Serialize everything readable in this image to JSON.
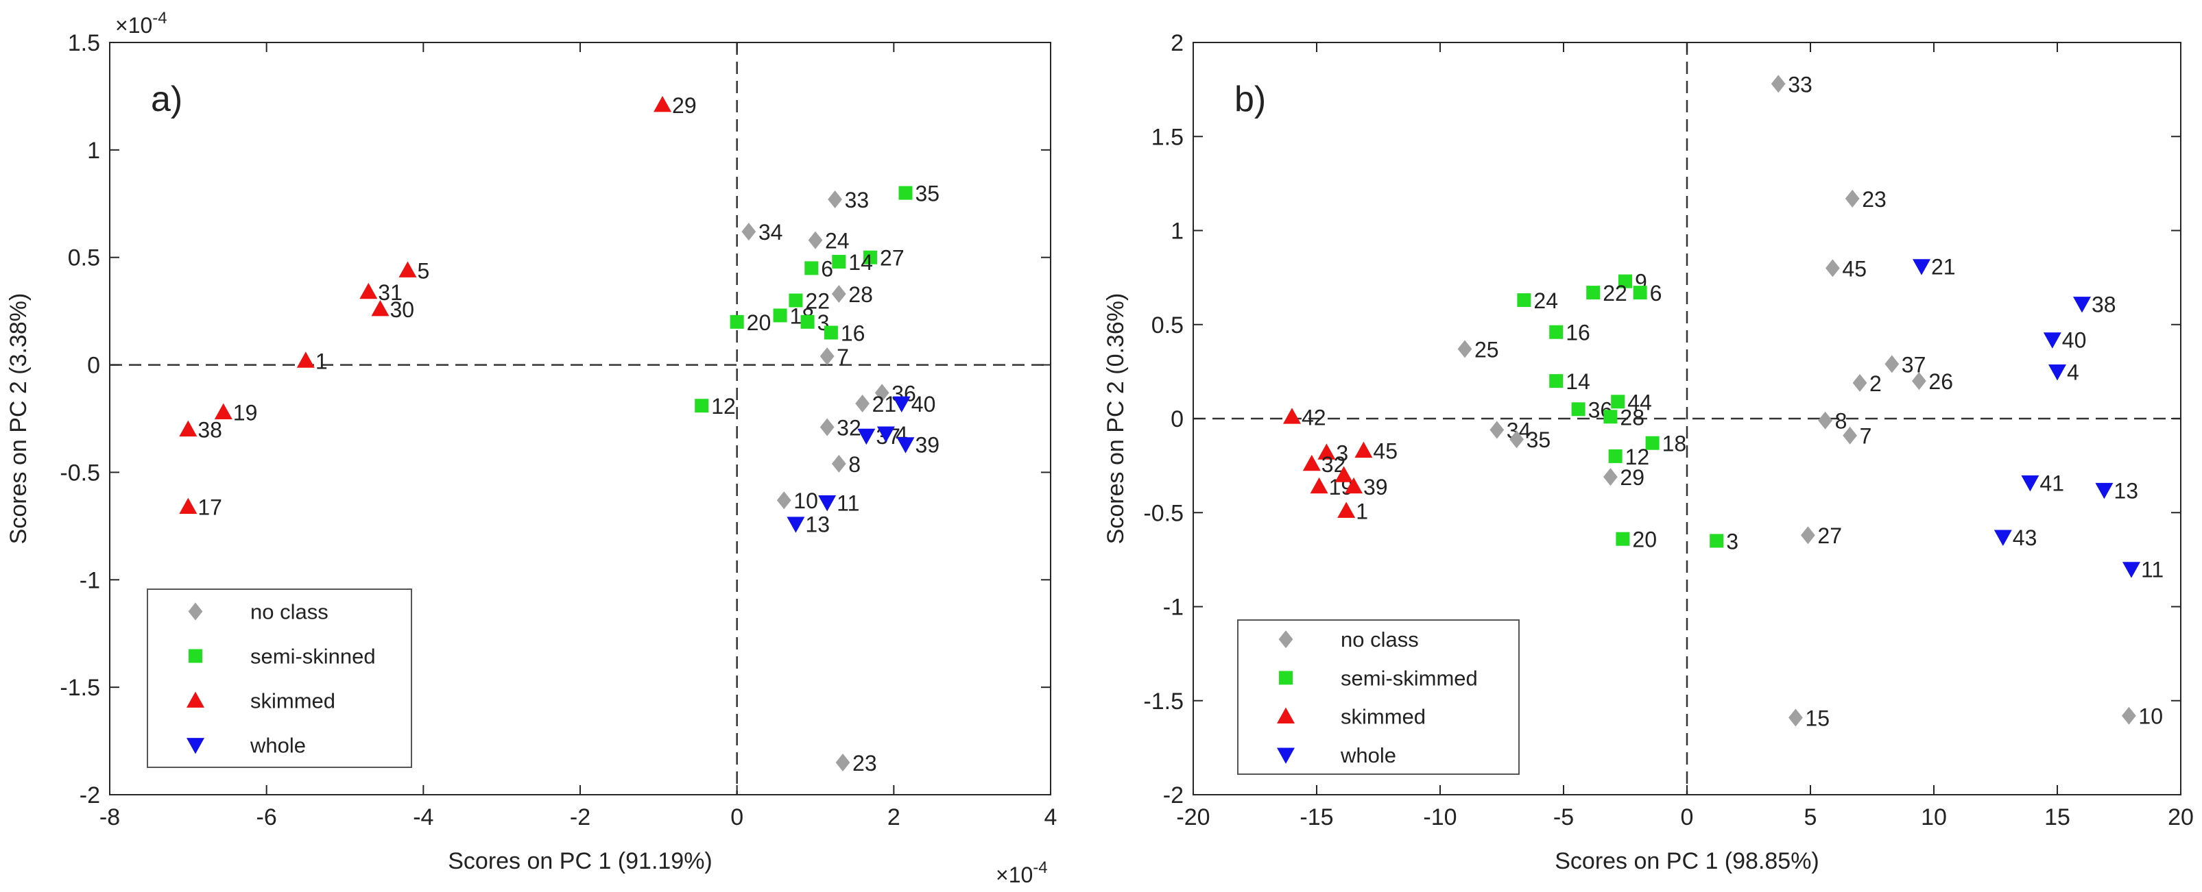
{
  "chart_data": [
    {
      "type": "scatter",
      "panel_label": "a)",
      "xlabel": "Scores on PC 1 (91.19%)",
      "ylabel": "Scores on PC 2 (3.38%)",
      "x_scale_label": "×10",
      "x_scale_exp": "-4",
      "y_scale_label": "×10",
      "y_scale_exp": "-4",
      "xlim": [
        -8,
        4
      ],
      "ylim": [
        -2,
        1.5
      ],
      "xticks": [
        -8,
        -6,
        -4,
        -2,
        0,
        2,
        4
      ],
      "yticks": [
        -2,
        -1.5,
        -1,
        -0.5,
        0,
        0.5,
        1,
        1.5
      ],
      "grid": false,
      "reference_lines": "dashed lines at x=0 and y=0",
      "legend_position": "bottom-left",
      "legend": [
        {
          "label": "no class",
          "marker": "diamond",
          "color": "#a0a0a0"
        },
        {
          "label": "semi-skinned",
          "marker": "square",
          "color": "#22dd22"
        },
        {
          "label": "skimmed",
          "marker": "triangle-up",
          "color": "#ee1111"
        },
        {
          "label": "whole",
          "marker": "triangle-down",
          "color": "#1111ee"
        }
      ],
      "series": [
        {
          "name": "no class",
          "points": [
            {
              "label": "33",
              "x": 1.25,
              "y": 0.77
            },
            {
              "label": "34",
              "x": 0.15,
              "y": 0.62
            },
            {
              "label": "24",
              "x": 1.0,
              "y": 0.58
            },
            {
              "label": "28",
              "x": 1.3,
              "y": 0.33
            },
            {
              "label": "7",
              "x": 1.15,
              "y": 0.04
            },
            {
              "label": "36",
              "x": 1.85,
              "y": -0.13
            },
            {
              "label": "21",
              "x": 1.6,
              "y": -0.18
            },
            {
              "label": "32",
              "x": 1.15,
              "y": -0.29
            },
            {
              "label": "8",
              "x": 1.3,
              "y": -0.46
            },
            {
              "label": "10",
              "x": 0.6,
              "y": -0.63
            },
            {
              "label": "23",
              "x": 1.35,
              "y": -1.85
            }
          ]
        },
        {
          "name": "semi-skinned",
          "points": [
            {
              "label": "35",
              "x": 2.15,
              "y": 0.8
            },
            {
              "label": "27",
              "x": 1.7,
              "y": 0.5
            },
            {
              "label": "14",
              "x": 1.3,
              "y": 0.48
            },
            {
              "label": "6",
              "x": 0.95,
              "y": 0.45
            },
            {
              "label": "22",
              "x": 0.75,
              "y": 0.3
            },
            {
              "label": "18",
              "x": 0.55,
              "y": 0.23
            },
            {
              "label": "3",
              "x": 0.9,
              "y": 0.2
            },
            {
              "label": "20",
              "x": 0.0,
              "y": 0.2
            },
            {
              "label": "16",
              "x": 1.2,
              "y": 0.15
            },
            {
              "label": "12",
              "x": -0.45,
              "y": -0.19
            }
          ]
        },
        {
          "name": "skimmed",
          "points": [
            {
              "label": "29",
              "x": -0.95,
              "y": 1.21
            },
            {
              "label": "5",
              "x": -4.2,
              "y": 0.44
            },
            {
              "label": "31",
              "x": -4.7,
              "y": 0.34
            },
            {
              "label": "30",
              "x": -4.55,
              "y": 0.26
            },
            {
              "label": "1",
              "x": -5.5,
              "y": 0.02
            },
            {
              "label": "19",
              "x": -6.55,
              "y": -0.22
            },
            {
              "label": "38",
              "x": -7.0,
              "y": -0.3
            },
            {
              "label": "17",
              "x": -7.0,
              "y": -0.66
            }
          ]
        },
        {
          "name": "whole",
          "points": [
            {
              "label": "40",
              "x": 2.1,
              "y": -0.18
            },
            {
              "label": "37",
              "x": 1.65,
              "y": -0.33
            },
            {
              "label": "4",
              "x": 1.9,
              "y": -0.32
            },
            {
              "label": "39",
              "x": 2.15,
              "y": -0.37
            },
            {
              "label": "11",
              "x": 1.15,
              "y": -0.64
            },
            {
              "label": "13",
              "x": 0.75,
              "y": -0.74
            }
          ]
        }
      ]
    },
    {
      "type": "scatter",
      "panel_label": "b)",
      "xlabel": "Scores on PC 1 (98.85%)",
      "ylabel": "Scores on PC 2 (0.36%)",
      "xlim": [
        -20,
        20
      ],
      "ylim": [
        -2,
        2
      ],
      "xticks": [
        -20,
        -15,
        -10,
        -5,
        0,
        5,
        10,
        15,
        20
      ],
      "yticks": [
        -2,
        -1.5,
        -1,
        -0.5,
        0,
        0.5,
        1,
        1.5,
        2
      ],
      "grid": false,
      "reference_lines": "dashed lines at x=0 and y=0",
      "legend_position": "bottom-left",
      "legend": [
        {
          "label": "no class",
          "marker": "diamond",
          "color": "#a0a0a0"
        },
        {
          "label": "semi-skimmed",
          "marker": "square",
          "color": "#22dd22"
        },
        {
          "label": "skimmed",
          "marker": "triangle-up",
          "color": "#ee1111"
        },
        {
          "label": "whole",
          "marker": "triangle-down",
          "color": "#1111ee"
        }
      ],
      "series": [
        {
          "name": "no class",
          "points": [
            {
              "label": "33",
              "x": 3.7,
              "y": 1.78
            },
            {
              "label": "23",
              "x": 6.7,
              "y": 1.17
            },
            {
              "label": "45",
              "x": 5.9,
              "y": 0.8
            },
            {
              "label": "25",
              "x": -9.0,
              "y": 0.37
            },
            {
              "label": "37",
              "x": 8.3,
              "y": 0.29
            },
            {
              "label": "2",
              "x": 7.0,
              "y": 0.19
            },
            {
              "label": "26",
              "x": 9.4,
              "y": 0.2
            },
            {
              "label": "8",
              "x": 5.6,
              "y": -0.01
            },
            {
              "label": "7",
              "x": 6.6,
              "y": -0.09
            },
            {
              "label": "34",
              "x": -7.7,
              "y": -0.06
            },
            {
              "label": "35",
              "x": -6.9,
              "y": -0.11
            },
            {
              "label": "29",
              "x": -3.1,
              "y": -0.31
            },
            {
              "label": "27",
              "x": 4.9,
              "y": -0.62
            },
            {
              "label": "15",
              "x": 4.4,
              "y": -1.59
            },
            {
              "label": "10",
              "x": 17.9,
              "y": -1.58
            }
          ]
        },
        {
          "name": "semi-skimmed",
          "points": [
            {
              "label": "9",
              "x": -2.5,
              "y": 0.73
            },
            {
              "label": "22",
              "x": -3.8,
              "y": 0.67
            },
            {
              "label": "6",
              "x": -1.9,
              "y": 0.67
            },
            {
              "label": "24",
              "x": -6.6,
              "y": 0.63
            },
            {
              "label": "16",
              "x": -5.3,
              "y": 0.46
            },
            {
              "label": "14",
              "x": -5.3,
              "y": 0.2
            },
            {
              "label": "44",
              "x": -2.8,
              "y": 0.09
            },
            {
              "label": "36",
              "x": -4.4,
              "y": 0.05
            },
            {
              "label": "28",
              "x": -3.1,
              "y": 0.01
            },
            {
              "label": "18",
              "x": -1.4,
              "y": -0.13
            },
            {
              "label": "12",
              "x": -2.9,
              "y": -0.2
            },
            {
              "label": "20",
              "x": -2.6,
              "y": -0.64
            },
            {
              "label": "3",
              "x": 1.2,
              "y": -0.65
            }
          ]
        },
        {
          "name": "skimmed",
          "points": [
            {
              "label": "42",
              "x": -16.0,
              "y": 0.01
            },
            {
              "label": "3",
              "x": -14.6,
              "y": -0.18
            },
            {
              "label": "45",
              "x": -13.1,
              "y": -0.17
            },
            {
              "label": "32",
              "x": -15.2,
              "y": -0.24
            },
            {
              "label": "19",
              "x": -14.9,
              "y": -0.36
            },
            {
              "label": "39",
              "x": -13.5,
              "y": -0.36
            },
            {
              "label": "1",
              "x": -13.8,
              "y": -0.49
            },
            {
              "label": "",
              "x": -13.9,
              "y": -0.3
            }
          ]
        },
        {
          "name": "whole",
          "points": [
            {
              "label": "21",
              "x": 9.5,
              "y": 0.81
            },
            {
              "label": "38",
              "x": 16.0,
              "y": 0.61
            },
            {
              "label": "40",
              "x": 14.8,
              "y": 0.42
            },
            {
              "label": "4",
              "x": 15.0,
              "y": 0.25
            },
            {
              "label": "41",
              "x": 13.9,
              "y": -0.34
            },
            {
              "label": "13",
              "x": 16.9,
              "y": -0.38
            },
            {
              "label": "43",
              "x": 12.8,
              "y": -0.63
            },
            {
              "label": "11",
              "x": 18.0,
              "y": -0.8
            }
          ]
        }
      ]
    }
  ]
}
